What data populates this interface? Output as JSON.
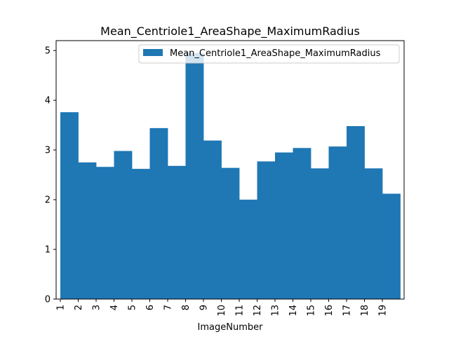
{
  "chart_data": {
    "type": "bar",
    "title": "Mean_Centriole1_AreaShape_MaximumRadius",
    "xlabel": "ImageNumber",
    "ylabel": "",
    "categories": [
      "1",
      "2",
      "3",
      "4",
      "5",
      "6",
      "7",
      "8",
      "9",
      "10",
      "11",
      "12",
      "13",
      "14",
      "15",
      "16",
      "17",
      "18",
      "19"
    ],
    "series": [
      {
        "name": "Mean_Centriole1_AreaShape_MaximumRadius",
        "values": [
          3.76,
          2.75,
          2.66,
          2.98,
          2.62,
          3.44,
          2.68,
          4.95,
          3.19,
          2.64,
          2.0,
          2.77,
          2.95,
          3.04,
          2.63,
          3.07,
          3.48,
          2.63,
          2.12
        ]
      }
    ],
    "yticks": [
      "0",
      "1",
      "2",
      "3",
      "4",
      "5"
    ],
    "ylim": [
      0,
      5.2
    ],
    "legend_position": "top-right",
    "grid": false,
    "bar_color": "#1f77b4"
  }
}
